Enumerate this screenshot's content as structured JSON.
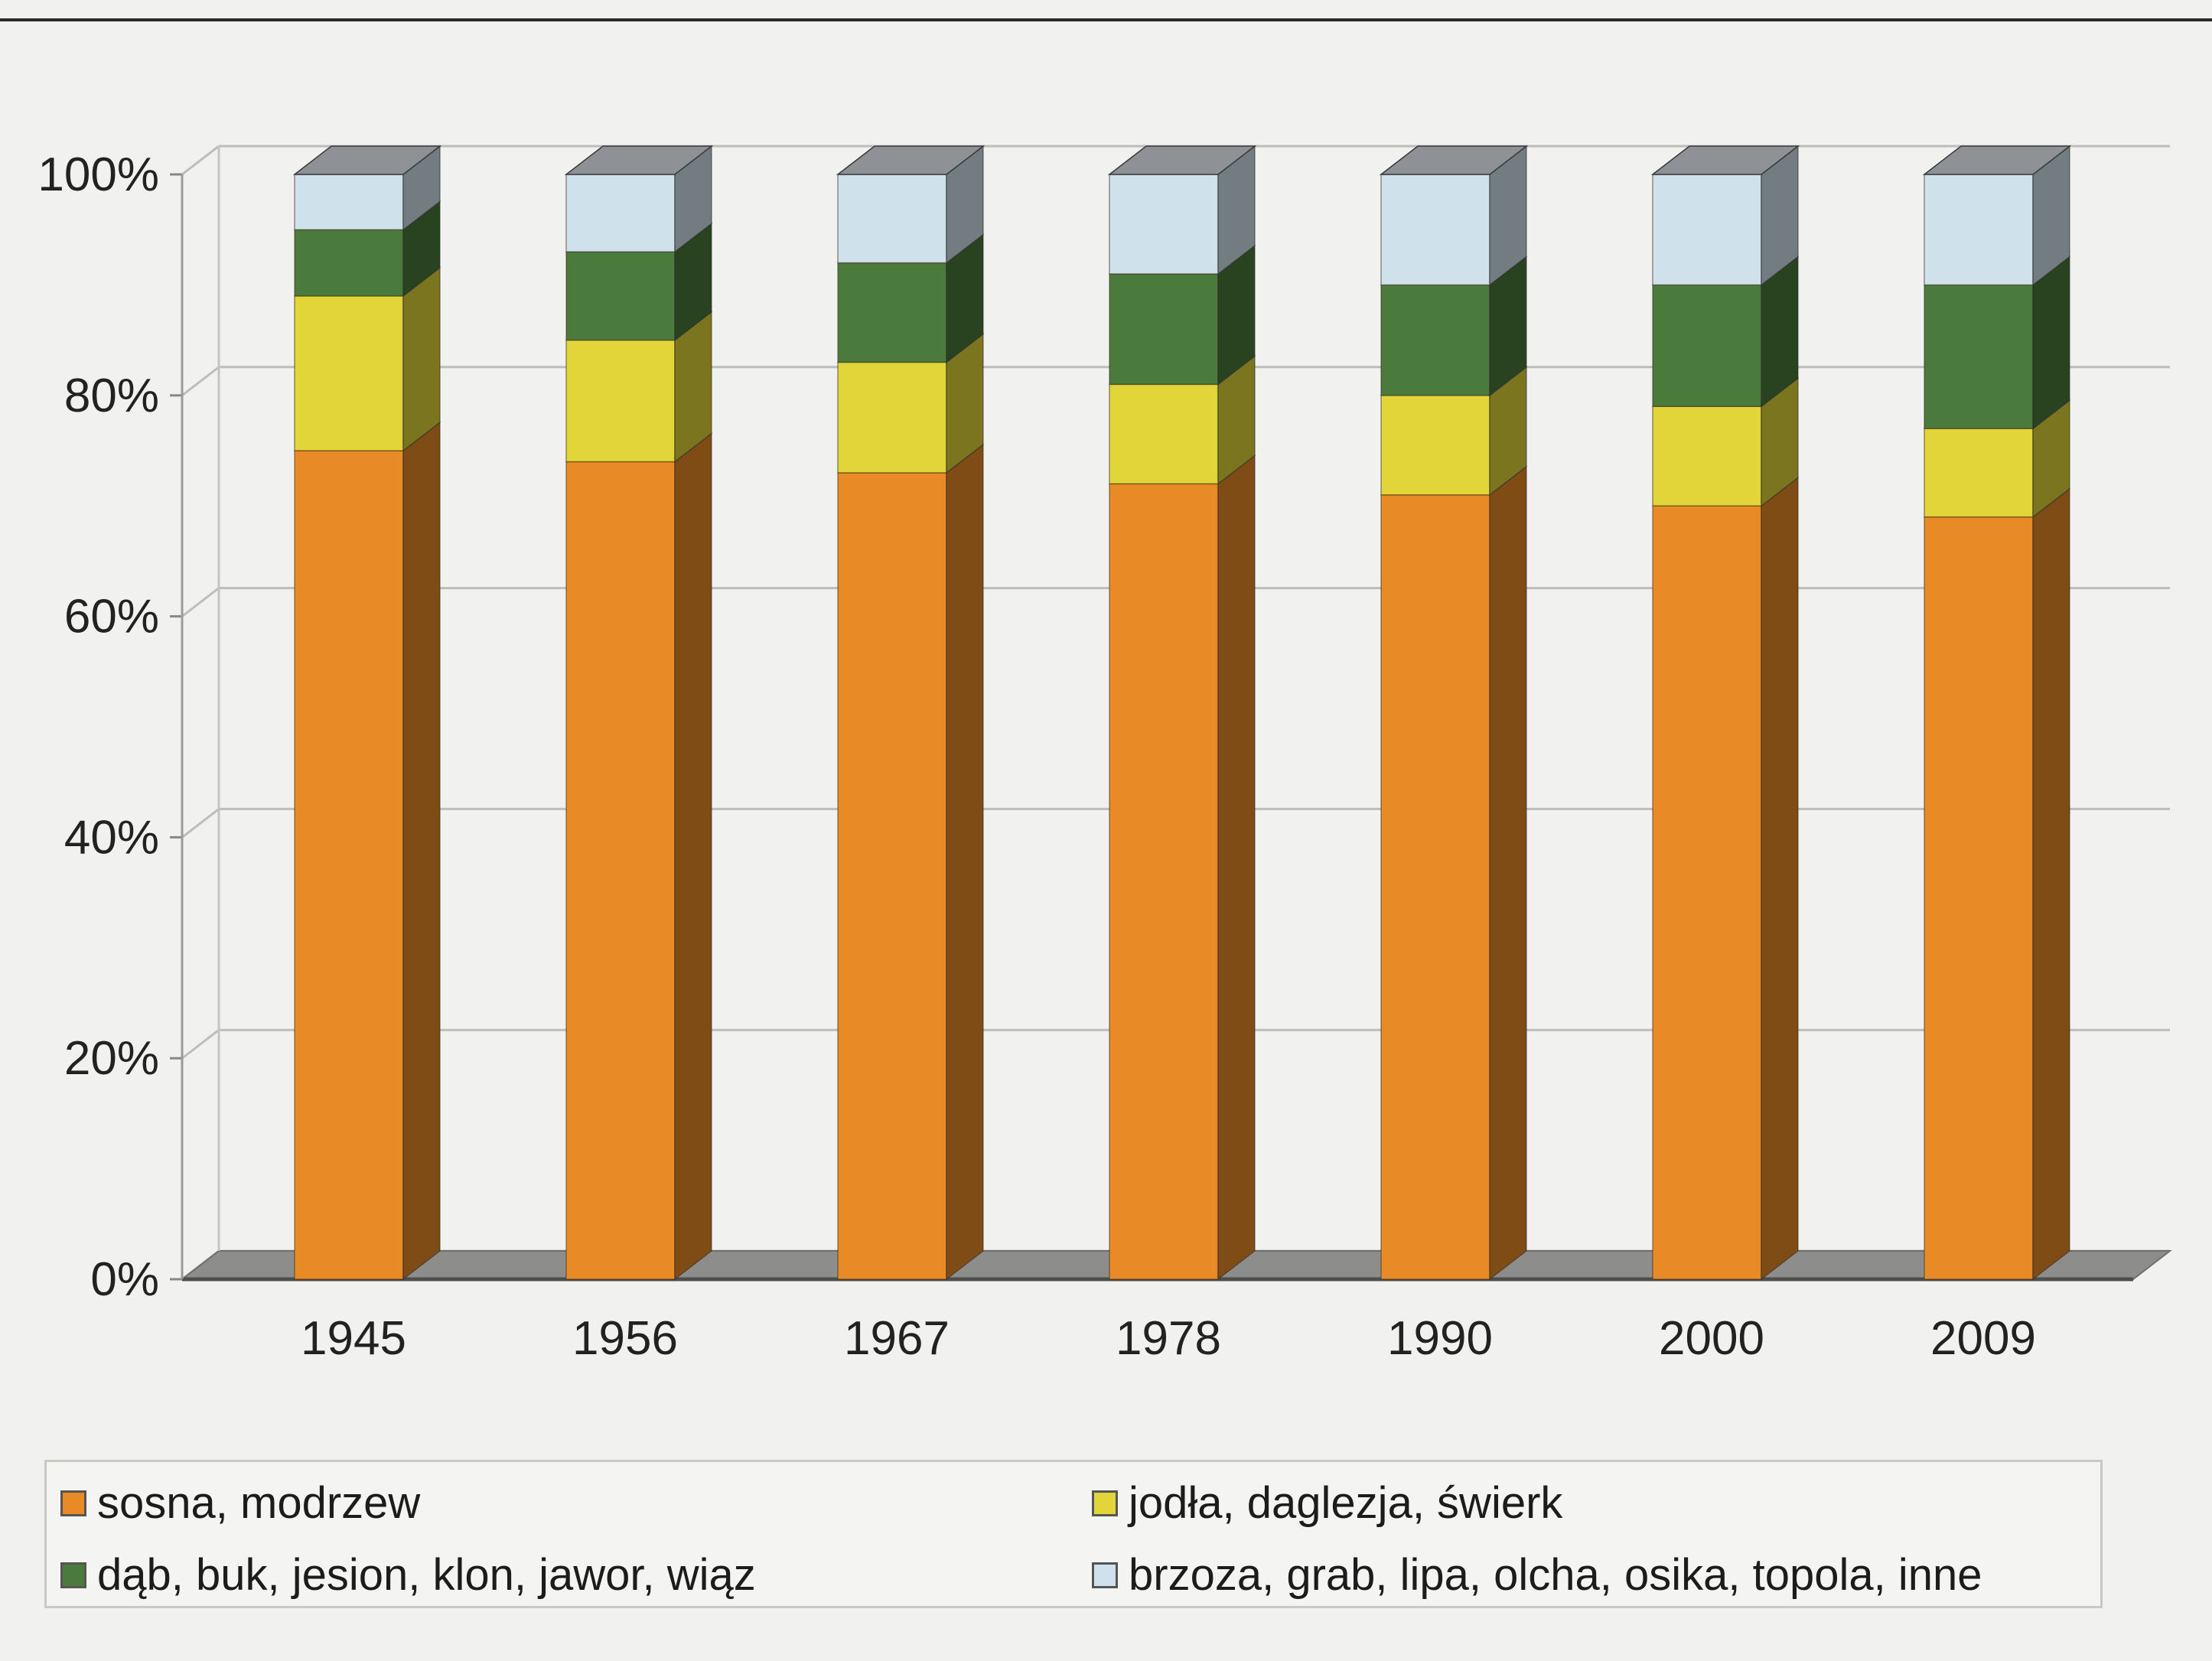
{
  "chart_data": {
    "type": "bar",
    "stacked": true,
    "style": "3d",
    "categories": [
      "1945",
      "1956",
      "1967",
      "1978",
      "1990",
      "2000",
      "2009"
    ],
    "series": [
      {
        "name": "sosna, modrzew",
        "color": "#e88a26",
        "values": [
          75,
          74,
          73,
          72,
          71,
          70,
          69
        ]
      },
      {
        "name": "jodła, daglezja, świerk",
        "color": "#e2d53a",
        "values": [
          14,
          11,
          10,
          9,
          9,
          9,
          8
        ]
      },
      {
        "name": "dąb, buk, jesion, klon, jawor, wiąz",
        "color": "#4a7a3c",
        "values": [
          6,
          8,
          9,
          10,
          10,
          11,
          13
        ]
      },
      {
        "name": "brzoza, grab, lipa, olcha, osika, topola, inne",
        "color": "#cfe1ea",
        "values": [
          5,
          7,
          8,
          9,
          10,
          10,
          10
        ]
      }
    ],
    "y_ticks": [
      "0%",
      "20%",
      "40%",
      "60%",
      "80%",
      "100%"
    ],
    "ylim": [
      0,
      100
    ],
    "grid": true,
    "legend_position": "bottom"
  }
}
